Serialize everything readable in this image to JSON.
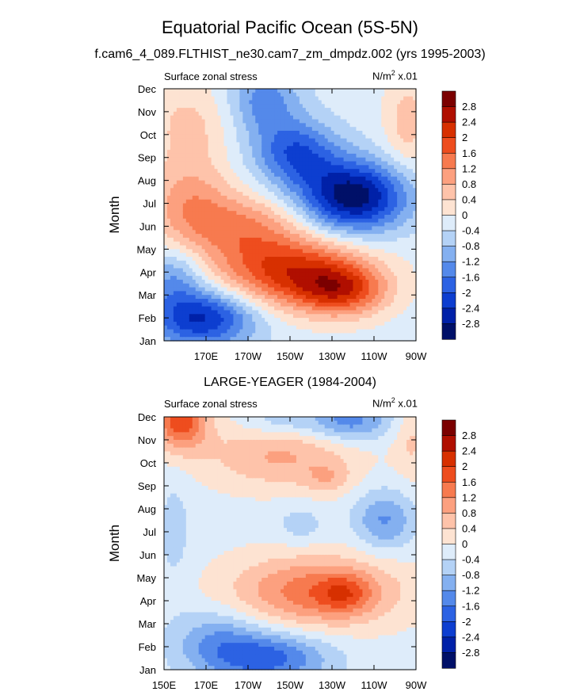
{
  "figure": {
    "title": "Equatorial Pacific Ocean (5S-5N)",
    "subtitle": "f.cam6_4_089.FLTHIST_ne30.cam7_zm_dmpdz.002 (yrs 1995-2003)"
  },
  "colorscale": {
    "levels": [
      "2.8",
      "2.4",
      "2",
      "1.6",
      "1.2",
      "0.8",
      "0.4",
      "0",
      "-0.4",
      "-0.8",
      "-1.2",
      "-1.6",
      "-2",
      "-2.4",
      "-2.8"
    ],
    "colors": [
      "#7b0000",
      "#b00f00",
      "#d73000",
      "#ee4d1e",
      "#f77a4f",
      "#fca07f",
      "#fec3aa",
      "#fde3d2",
      "#deecfa",
      "#b4d2f6",
      "#84b0f0",
      "#5489ea",
      "#2c62e3",
      "#0d3ed0",
      "#0021a8",
      "#001068"
    ]
  },
  "chart_data": [
    {
      "type": "heatmap",
      "title": "",
      "left_label": "Surface zonal stress",
      "units_base": "N/m",
      "units_exp": "2",
      "units_scale": "x.01",
      "ylabel": "Month",
      "xlabel": "",
      "x_ticks": [
        "170E",
        "170W",
        "150W",
        "130W",
        "110W",
        "90W"
      ],
      "x_tick_lons": [
        170,
        190,
        210,
        230,
        250,
        270
      ],
      "y_ticks": [
        "Jan",
        "Feb",
        "Mar",
        "Apr",
        "May",
        "Jun",
        "Jul",
        "Aug",
        "Sep",
        "Oct",
        "Nov",
        "Dec"
      ],
      "xlim": [
        150,
        270
      ],
      "ylim": [
        0,
        11
      ],
      "field": {
        "base": -0.2,
        "blobs": [
          {
            "lon": 210,
            "month": 3.0,
            "amp": 2.3,
            "sx": 25,
            "sy": 1.1
          },
          {
            "lon": 235,
            "month": 2.2,
            "amp": 1.8,
            "sx": 15,
            "sy": 0.8
          },
          {
            "lon": 185,
            "month": 5.0,
            "amp": 1.3,
            "sx": 22,
            "sy": 1.0
          },
          {
            "lon": 162,
            "month": 6.3,
            "amp": 1.0,
            "sx": 14,
            "sy": 1.3
          },
          {
            "lon": 162,
            "month": 9.5,
            "amp": 0.7,
            "sx": 14,
            "sy": 1.3
          },
          {
            "lon": 240,
            "month": 6.3,
            "amp": -2.9,
            "sx": 18,
            "sy": 1.1
          },
          {
            "lon": 213,
            "month": 8.2,
            "amp": -1.7,
            "sx": 14,
            "sy": 1.0
          },
          {
            "lon": 198,
            "month": 10.5,
            "amp": -1.2,
            "sx": 12,
            "sy": 1.1
          },
          {
            "lon": 168,
            "month": 1.0,
            "amp": -2.3,
            "sx": 18,
            "sy": 0.9
          },
          {
            "lon": 155,
            "month": 2.8,
            "amp": -1.0,
            "sx": 10,
            "sy": 0.9
          },
          {
            "lon": 266,
            "month": 9.5,
            "amp": 0.8,
            "sx": 8,
            "sy": 1.5
          }
        ]
      }
    },
    {
      "type": "heatmap",
      "title": "LARGE-YEAGER (1984-2004)",
      "left_label": "Surface zonal stress",
      "units_base": "N/m",
      "units_exp": "2",
      "units_scale": "x.01",
      "ylabel": "Month",
      "xlabel": "",
      "x_ticks": [
        "150E",
        "170E",
        "170W",
        "150W",
        "130W",
        "110W",
        "90W"
      ],
      "x_tick_lons": [
        150,
        170,
        190,
        210,
        230,
        250,
        270
      ],
      "y_ticks": [
        "Jan",
        "Feb",
        "Mar",
        "Apr",
        "May",
        "Jun",
        "Jul",
        "Aug",
        "Sep",
        "Oct",
        "Nov",
        "Dec"
      ],
      "xlim": [
        150,
        270
      ],
      "ylim": [
        0,
        11
      ],
      "field": {
        "base": -0.15,
        "blobs": [
          {
            "lon": 222,
            "month": 3.4,
            "amp": 1.6,
            "sx": 28,
            "sy": 1.1
          },
          {
            "lon": 236,
            "month": 3.3,
            "amp": 0.9,
            "sx": 9,
            "sy": 0.6
          },
          {
            "lon": 205,
            "month": 9.3,
            "amp": 1.0,
            "sx": 25,
            "sy": 1.0
          },
          {
            "lon": 228,
            "month": 8.3,
            "amp": 0.6,
            "sx": 8,
            "sy": 0.5
          },
          {
            "lon": 158,
            "month": 10.8,
            "amp": 2.0,
            "sx": 9,
            "sy": 0.9
          },
          {
            "lon": 238,
            "month": 10.8,
            "amp": -1.3,
            "sx": 14,
            "sy": 0.6
          },
          {
            "lon": 205,
            "month": 10.8,
            "amp": -0.6,
            "sx": 12,
            "sy": 0.5
          },
          {
            "lon": 200,
            "month": 0.5,
            "amp": -1.6,
            "sx": 20,
            "sy": 0.8
          },
          {
            "lon": 175,
            "month": 1.3,
            "amp": -0.9,
            "sx": 15,
            "sy": 1.0
          },
          {
            "lon": 255,
            "month": 6.5,
            "amp": -1.1,
            "sx": 10,
            "sy": 0.9
          },
          {
            "lon": 215,
            "month": 6.3,
            "amp": -0.5,
            "sx": 8,
            "sy": 0.6
          },
          {
            "lon": 155,
            "month": 6.0,
            "amp": -0.4,
            "sx": 6,
            "sy": 2.0
          },
          {
            "lon": 268,
            "month": 10.0,
            "amp": 0.6,
            "sx": 6,
            "sy": 1.2
          }
        ]
      }
    }
  ]
}
